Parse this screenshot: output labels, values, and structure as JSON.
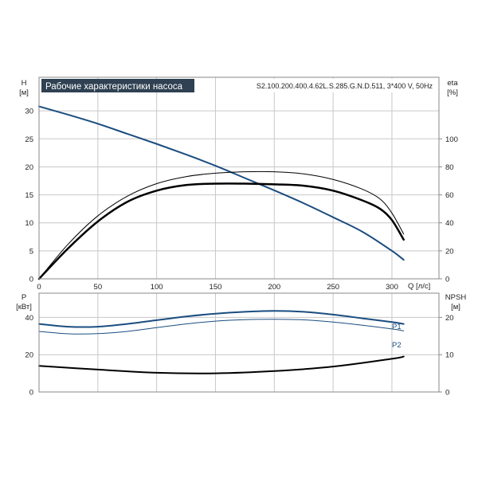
{
  "colors": {
    "blue": "#1a4d80",
    "black": "#000000",
    "grid": "#c8c8c8",
    "title_bg": "#2f4152"
  },
  "chart_data": [
    {
      "type": "line",
      "title": "Рабочие характеристики насоса",
      "subtitle": "S2.100.200.400.4.62L.S.285.G.N.D.511, 3*400 V, 50Hz",
      "xlabel": "Q [л/с]",
      "ylabel": [
        "H",
        "[м]"
      ],
      "y2label": [
        "eta",
        "[%]"
      ],
      "xlim": [
        0,
        340
      ],
      "ylim": [
        0,
        36
      ],
      "y2lim": [
        0,
        144
      ],
      "xticks": [
        "0",
        "50",
        "100",
        "150",
        "200",
        "250",
        "300"
      ],
      "yticks": [
        "0",
        "5",
        "10",
        "15",
        "20",
        "25",
        "30"
      ],
      "y2ticks": [
        "0",
        "20",
        "40",
        "60",
        "80",
        "100"
      ],
      "grid": true,
      "series": [
        {
          "axis": "left",
          "color": "#1a4d80",
          "width": 2,
          "x": [
            0,
            25,
            50,
            75,
            100,
            125,
            150,
            175,
            200,
            225,
            250,
            275,
            300,
            310
          ],
          "y": [
            30.8,
            29.3,
            27.7,
            25.9,
            24.1,
            22.2,
            20.2,
            18.0,
            15.8,
            13.5,
            11.0,
            8.4,
            5.0,
            3.4
          ]
        },
        {
          "axis": "right",
          "color": "#000000",
          "width": 1,
          "x": [
            0,
            25,
            50,
            75,
            100,
            125,
            150,
            175,
            200,
            225,
            250,
            275,
            290,
            300,
            310
          ],
          "y": [
            0,
            25,
            45,
            59,
            68,
            73,
            75.5,
            76.5,
            76.5,
            75,
            71,
            64,
            57,
            47,
            32
          ]
        },
        {
          "axis": "right",
          "color": "#000000",
          "width": 2.5,
          "x": [
            0,
            25,
            50,
            75,
            100,
            125,
            150,
            175,
            200,
            225,
            250,
            275,
            290,
            300,
            310
          ],
          "y": [
            0,
            22,
            41,
            55,
            63,
            67,
            68,
            68,
            67.5,
            66.5,
            63,
            56,
            50,
            42,
            28
          ]
        }
      ]
    },
    {
      "type": "line",
      "ylabel": [
        "P",
        "[кВт]"
      ],
      "y2label": [
        "NPSH",
        "[м]"
      ],
      "xlim": [
        0,
        340
      ],
      "ylim": [
        0,
        53
      ],
      "y2lim": [
        0,
        26.5
      ],
      "yticks": [
        "0",
        "20",
        "40"
      ],
      "y2ticks": [
        "0",
        "10",
        "20"
      ],
      "grid": true,
      "series": [
        {
          "name": "P1",
          "axis": "left",
          "color": "#1a4d80",
          "width": 2,
          "x": [
            0,
            25,
            50,
            75,
            100,
            125,
            150,
            175,
            200,
            225,
            250,
            275,
            300,
            310
          ],
          "y": [
            36.5,
            35,
            35,
            36.5,
            38.5,
            40.5,
            42,
            43,
            43.5,
            43,
            41.5,
            39.5,
            37.5,
            36.5
          ]
        },
        {
          "name": "P2",
          "axis": "left",
          "color": "#1a4d80",
          "width": 1,
          "x": [
            0,
            25,
            50,
            75,
            100,
            125,
            150,
            175,
            200,
            225,
            250,
            275,
            300,
            310
          ],
          "y": [
            32.5,
            31.2,
            31.3,
            32.5,
            34.5,
            36.5,
            38,
            38.8,
            39,
            38.7,
            37.5,
            35.8,
            33.8,
            32.8
          ]
        },
        {
          "axis": "right",
          "color": "#000000",
          "width": 2,
          "x": [
            0,
            50,
            100,
            150,
            200,
            250,
            300,
            310
          ],
          "y": [
            7,
            6,
            5.15,
            5,
            5.6,
            6.8,
            8.9,
            9.5
          ]
        }
      ]
    }
  ]
}
